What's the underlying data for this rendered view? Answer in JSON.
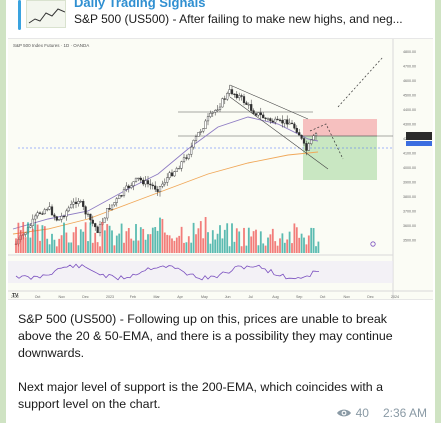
{
  "reply": {
    "title": "Daily Trading Signals",
    "preview": "S&P 500 (US500) - After failing to make new highs, and neg..."
  },
  "chart_header": "S&P 500 Index Futures · 1D · OANDA",
  "x_ticks": [
    "2022",
    "Oct",
    "Nov",
    "Dec",
    "2023",
    "Feb",
    "Mar",
    "Apr",
    "May",
    "Jun",
    "Jul",
    "Aug",
    "Sep",
    "Oct",
    "Nov",
    "Dec",
    "2024"
  ],
  "y_ticks": [
    "4800.00",
    "4700.00",
    "4600.00",
    "4500.00",
    "4400.00",
    "4300.00",
    "4200.00",
    "4100.00",
    "4000.00",
    "3900.00",
    "3800.00",
    "3700.00",
    "3600.00",
    "3500.00"
  ],
  "message": {
    "paragraph1": "S&P 500 (US500) - Following up on this, prices are unable to break above the 20 & 50-EMA, and there is a possibility they may continue downwards.",
    "paragraph2": "Next major level of support is the 200-EMA, which coincides with a support level on the chart."
  },
  "meta": {
    "views": "40",
    "time": "2:36 AM"
  },
  "icons": {
    "views": "eye-icon"
  },
  "colors": {
    "accent": "#2f8fd1",
    "bull": "#26a69a",
    "bear": "#ef5350",
    "target_zone": "#bfe3b8",
    "stop_zone": "#f5b5b5",
    "ema200": "#f0a85a",
    "ema50": "#8e7cc3"
  }
}
